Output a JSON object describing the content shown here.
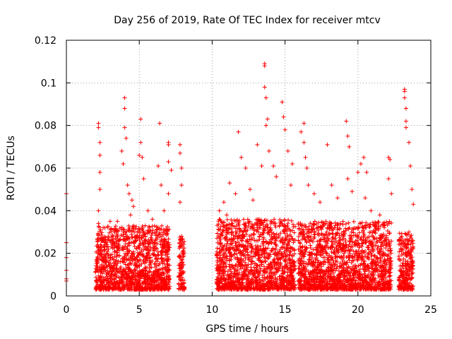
{
  "chart_data": {
    "type": "scatter",
    "title": "Day 256 of 2019, Rate Of TEC Index for receiver mtcv",
    "xlabel": "GPS time / hours",
    "ylabel": "ROTI / TECUs",
    "xlim": [
      0,
      25
    ],
    "ylim": [
      0,
      0.12
    ],
    "x_ticks": [
      0,
      5,
      10,
      15,
      20,
      25
    ],
    "y_ticks": [
      0,
      0.02,
      0.04,
      0.06,
      0.08,
      0.1,
      0.12
    ],
    "x_tick_labels": [
      "0",
      "5",
      "10",
      "15",
      "20",
      "25"
    ],
    "y_tick_labels": [
      "0",
      "0.02",
      "0.04",
      "0.06",
      "0.08",
      "0.1",
      "0.12"
    ],
    "grid": true,
    "legend": "none",
    "marker": "plus",
    "color": "#ff0000",
    "series": [
      {
        "points": [
          [
            0.0,
            0.048
          ],
          [
            0.0,
            0.025
          ],
          [
            0.0,
            0.018
          ],
          [
            0.0,
            0.012
          ],
          [
            0.0,
            0.008
          ],
          [
            0.0,
            0.007
          ],
          [
            2.2,
            0.081
          ],
          [
            2.2,
            0.079
          ],
          [
            2.3,
            0.072
          ],
          [
            2.3,
            0.066
          ],
          [
            2.3,
            0.058
          ],
          [
            2.3,
            0.05
          ],
          [
            2.2,
            0.04
          ],
          [
            2.2,
            0.034
          ],
          [
            2.4,
            0.026
          ],
          [
            2.4,
            0.012
          ],
          [
            3.0,
            0.035
          ],
          [
            3.2,
            0.028
          ],
          [
            3.5,
            0.035
          ],
          [
            3.8,
            0.068
          ],
          [
            3.9,
            0.062
          ],
          [
            4.0,
            0.093
          ],
          [
            4.0,
            0.088
          ],
          [
            4.0,
            0.079
          ],
          [
            4.1,
            0.074
          ],
          [
            4.2,
            0.052
          ],
          [
            4.3,
            0.048
          ],
          [
            4.5,
            0.045
          ],
          [
            4.6,
            0.042
          ],
          [
            4.4,
            0.038
          ],
          [
            5.0,
            0.066
          ],
          [
            5.1,
            0.083
          ],
          [
            5.1,
            0.072
          ],
          [
            5.2,
            0.065
          ],
          [
            5.3,
            0.055
          ],
          [
            5.6,
            0.04
          ],
          [
            5.9,
            0.036
          ],
          [
            6.4,
            0.081
          ],
          [
            6.3,
            0.061
          ],
          [
            6.5,
            0.052
          ],
          [
            6.7,
            0.04
          ],
          [
            7.0,
            0.072
          ],
          [
            7.0,
            0.071
          ],
          [
            7.0,
            0.063
          ],
          [
            7.2,
            0.059
          ],
          [
            7.0,
            0.048
          ],
          [
            7.8,
            0.071
          ],
          [
            7.8,
            0.067
          ],
          [
            7.9,
            0.06
          ],
          [
            7.9,
            0.052
          ],
          [
            7.8,
            0.044
          ],
          [
            7.9,
            0.028
          ],
          [
            8.0,
            0.021
          ],
          [
            10.5,
            0.04
          ],
          [
            10.8,
            0.044
          ],
          [
            11.0,
            0.038
          ],
          [
            11.2,
            0.053
          ],
          [
            11.6,
            0.048
          ],
          [
            11.8,
            0.077
          ],
          [
            12.0,
            0.065
          ],
          [
            12.3,
            0.06
          ],
          [
            12.6,
            0.05
          ],
          [
            12.8,
            0.045
          ],
          [
            13.1,
            0.071
          ],
          [
            13.4,
            0.061
          ],
          [
            13.6,
            0.109
          ],
          [
            13.6,
            0.108
          ],
          [
            13.6,
            0.098
          ],
          [
            13.7,
            0.093
          ],
          [
            13.8,
            0.083
          ],
          [
            13.7,
            0.08
          ],
          [
            13.9,
            0.068
          ],
          [
            14.2,
            0.061
          ],
          [
            14.4,
            0.056
          ],
          [
            14.8,
            0.091
          ],
          [
            14.9,
            0.084
          ],
          [
            15.0,
            0.078
          ],
          [
            15.2,
            0.068
          ],
          [
            15.5,
            0.062
          ],
          [
            15.4,
            0.052
          ],
          [
            16.1,
            0.077
          ],
          [
            16.3,
            0.081
          ],
          [
            16.3,
            0.072
          ],
          [
            16.4,
            0.065
          ],
          [
            16.5,
            0.06
          ],
          [
            16.6,
            0.052
          ],
          [
            17.0,
            0.048
          ],
          [
            17.4,
            0.044
          ],
          [
            17.9,
            0.071
          ],
          [
            18.2,
            0.052
          ],
          [
            18.6,
            0.046
          ],
          [
            19.2,
            0.082
          ],
          [
            19.3,
            0.075
          ],
          [
            19.4,
            0.07
          ],
          [
            19.3,
            0.055
          ],
          [
            19.6,
            0.049
          ],
          [
            20.0,
            0.058
          ],
          [
            20.2,
            0.062
          ],
          [
            20.4,
            0.065
          ],
          [
            20.6,
            0.058
          ],
          [
            20.5,
            0.046
          ],
          [
            20.9,
            0.04
          ],
          [
            21.5,
            0.038
          ],
          [
            21.8,
            0.033
          ],
          [
            22.1,
            0.065
          ],
          [
            22.2,
            0.064
          ],
          [
            22.1,
            0.055
          ],
          [
            22.3,
            0.048
          ],
          [
            23.2,
            0.097
          ],
          [
            23.2,
            0.096
          ],
          [
            23.2,
            0.093
          ],
          [
            23.3,
            0.088
          ],
          [
            23.3,
            0.082
          ],
          [
            23.3,
            0.079
          ],
          [
            23.5,
            0.072
          ],
          [
            23.6,
            0.061
          ],
          [
            23.7,
            0.05
          ],
          [
            23.8,
            0.043
          ],
          [
            23.5,
            0.03
          ]
        ]
      }
    ],
    "dense_segments": [
      {
        "x0": 2.0,
        "x1": 7.1,
        "ymin": 0.003,
        "ymax": 0.033
      },
      {
        "x0": 7.7,
        "x1": 8.1,
        "ymin": 0.003,
        "ymax": 0.028
      },
      {
        "x0": 10.3,
        "x1": 15.7,
        "ymin": 0.003,
        "ymax": 0.036
      },
      {
        "x0": 15.9,
        "x1": 22.3,
        "ymin": 0.003,
        "ymax": 0.035
      },
      {
        "x0": 22.8,
        "x1": 23.8,
        "ymin": 0.003,
        "ymax": 0.03
      }
    ]
  }
}
